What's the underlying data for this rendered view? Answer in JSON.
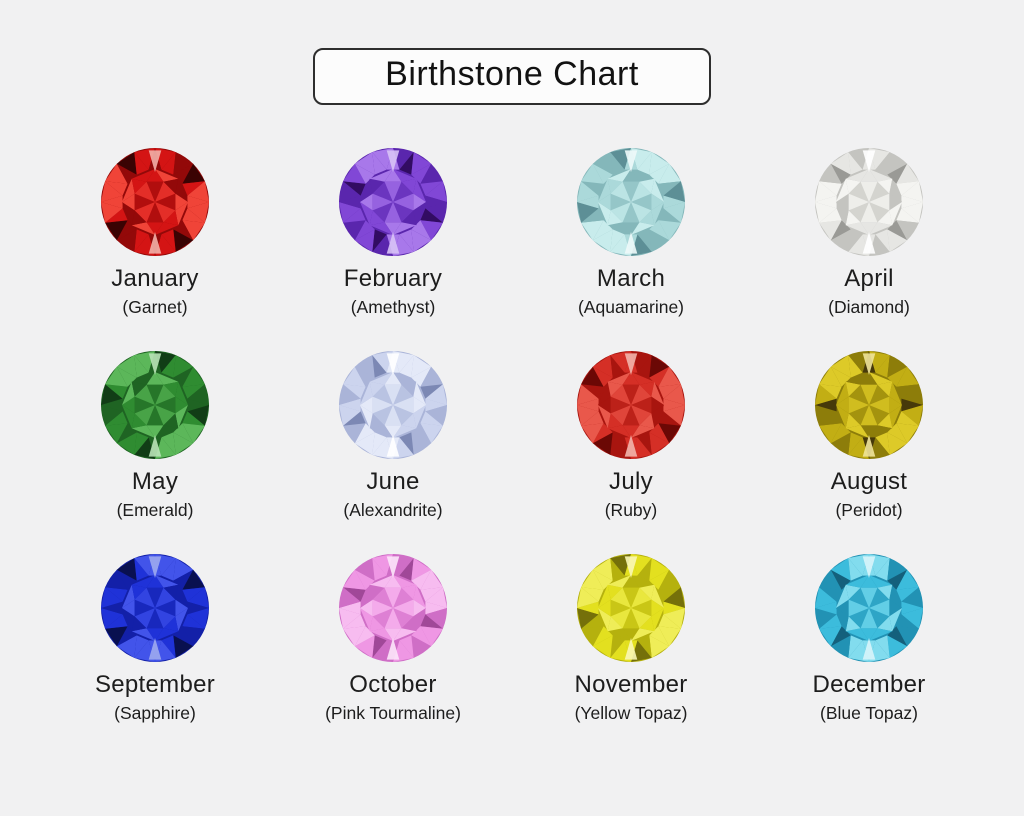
{
  "page": {
    "background": "#f1f1f2"
  },
  "title": {
    "text": "Birthstone Chart"
  },
  "gems": [
    {
      "month": "January",
      "stone": "Garnet",
      "label": "(Garnet)",
      "name": "garnet",
      "palette": {
        "deep": "#3a0303",
        "dark": "#930909",
        "base": "#d41414",
        "light": "#f04438",
        "sparkle": "#f3b0a8"
      }
    },
    {
      "month": "February",
      "stone": "Amethyst",
      "label": "(Amethyst)",
      "name": "amethyst",
      "palette": {
        "deep": "#320c62",
        "dark": "#5a26ad",
        "base": "#8147d6",
        "light": "#a878ea",
        "sparkle": "#d7c2f6"
      }
    },
    {
      "month": "March",
      "stone": "Aquamarine",
      "label": "(Aquamarine)",
      "name": "aquamarine",
      "palette": {
        "deep": "#5d8f96",
        "dark": "#84b7ba",
        "base": "#abd9da",
        "light": "#c8ecec",
        "sparkle": "#eefafa"
      }
    },
    {
      "month": "April",
      "stone": "Diamond",
      "label": "(Diamond)",
      "name": "diamond",
      "palette": {
        "deep": "#9a9a96",
        "dark": "#c4c4c0",
        "base": "#e6e6e3",
        "light": "#f4f4f1",
        "sparkle": "#ffffff"
      }
    },
    {
      "month": "May",
      "stone": "Emerald",
      "label": "(Emerald)",
      "name": "emerald",
      "palette": {
        "deep": "#113d16",
        "dark": "#1f6423",
        "base": "#2f8c31",
        "light": "#5cb75a",
        "sparkle": "#b9e3b7"
      }
    },
    {
      "month": "June",
      "stone": "Alexandrite",
      "label": "(Alexandrite)",
      "name": "alexandrite",
      "palette": {
        "deep": "#7c88b4",
        "dark": "#aab4d8",
        "base": "#ccd4ee",
        "light": "#e4e9f8",
        "sparkle": "#ffffff"
      }
    },
    {
      "month": "July",
      "stone": "Ruby",
      "label": "(Ruby)",
      "name": "ruby",
      "palette": {
        "deep": "#6b0805",
        "dark": "#a8150f",
        "base": "#d52f26",
        "light": "#e9584b",
        "sparkle": "#f2b5ac"
      }
    },
    {
      "month": "August",
      "stone": "Peridot",
      "label": "(Peridot)",
      "name": "peridot",
      "palette": {
        "deep": "#46390a",
        "dark": "#8d7d0a",
        "base": "#c2ae14",
        "light": "#ddca28",
        "sparkle": "#efe49a"
      }
    },
    {
      "month": "September",
      "stone": "Sapphire",
      "label": "(Sapphire)",
      "name": "sapphire",
      "palette": {
        "deep": "#091050",
        "dark": "#1320a8",
        "base": "#1f32d8",
        "light": "#4254ea",
        "sparkle": "#9daaf0"
      }
    },
    {
      "month": "October",
      "stone": "Pink Tourmaline",
      "label": "(Pink Tourmaline)",
      "name": "pink-tourmaline",
      "palette": {
        "deep": "#a04898",
        "dark": "#cf6ec6",
        "base": "#ef97e4",
        "light": "#f7bcf0",
        "sparkle": "#fce6f9"
      }
    },
    {
      "month": "November",
      "stone": "Yellow Topaz",
      "label": "(Yellow Topaz)",
      "name": "yellow-topaz",
      "palette": {
        "deep": "#75700a",
        "dark": "#b5b10e",
        "base": "#e3e01f",
        "light": "#efed58",
        "sparkle": "#f9f7b5"
      }
    },
    {
      "month": "December",
      "stone": "Blue Topaz",
      "label": "(Blue Topaz)",
      "name": "blue-topaz",
      "palette": {
        "deep": "#14607c",
        "dark": "#2292b4",
        "base": "#3cbcdc",
        "light": "#82dcee",
        "sparkle": "#d8f4fa"
      }
    }
  ]
}
